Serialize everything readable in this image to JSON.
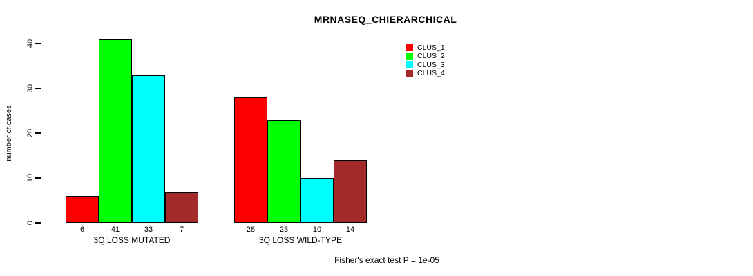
{
  "chart_data": {
    "type": "bar",
    "title": "MRNASEQ_CHIERARCHICAL",
    "ylabel": "number of cases",
    "ylim": [
      0,
      40
    ],
    "yticks": [
      0,
      10,
      20,
      30,
      40
    ],
    "categories": [
      "3Q LOSS MUTATED",
      "3Q LOSS WILD-TYPE"
    ],
    "series": [
      {
        "name": "CLUS_1",
        "color": "#FF0000",
        "values": [
          6,
          28
        ]
      },
      {
        "name": "CLUS_2",
        "color": "#00FF00",
        "values": [
          41,
          23
        ]
      },
      {
        "name": "CLUS_3",
        "color": "#00FFFF",
        "values": [
          33,
          10
        ]
      },
      {
        "name": "CLUS_4",
        "color": "#A52A2A",
        "values": [
          7,
          14
        ]
      }
    ],
    "bar_value_labels": [
      [
        6,
        41,
        33,
        7
      ],
      [
        28,
        23,
        10,
        14
      ]
    ],
    "legend_position": "top-right",
    "grid": false,
    "footnote": "Fisher's exact test P = 1e-05",
    "text_color": "#000000",
    "background_color": "#ffffff"
  }
}
